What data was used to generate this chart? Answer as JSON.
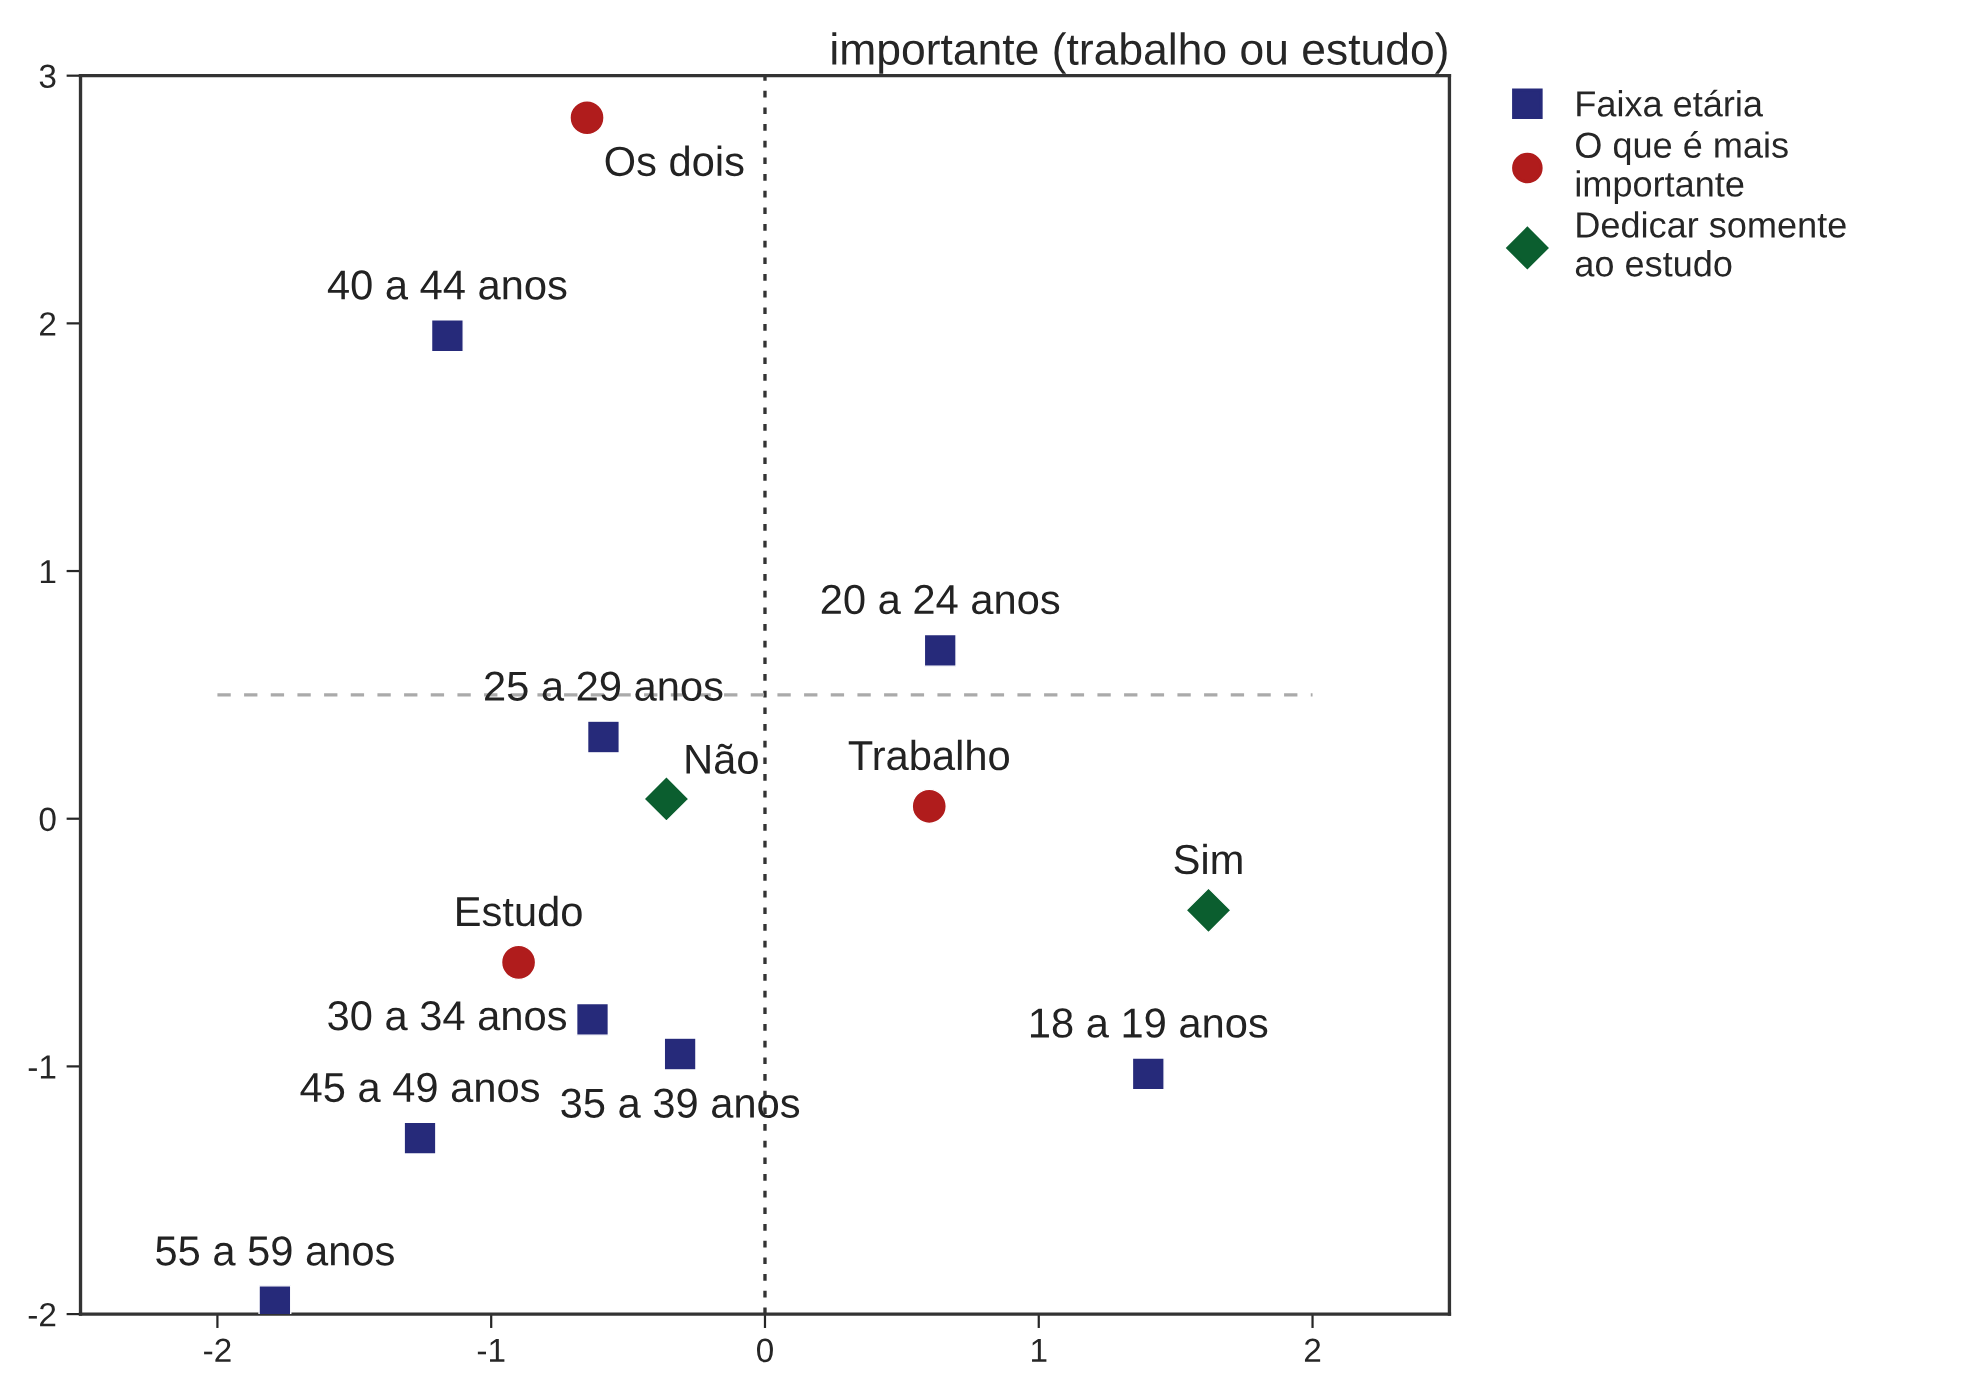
{
  "chart_data": {
    "type": "scatter",
    "title": "importante (trabalho ou estudo)",
    "xlim": [
      -2.5,
      2.5
    ],
    "ylim": [
      -2,
      3
    ],
    "xticks": [
      -2,
      -1,
      0,
      1,
      2
    ],
    "yticks": [
      -2,
      -1,
      0,
      1,
      2,
      3
    ],
    "grid": false,
    "legend": "top right",
    "series": [
      {
        "name": "Faixa etária",
        "color": "#262a7a",
        "marker": "square",
        "x": [
          -1.16,
          0.64,
          -0.59,
          -0.63,
          -0.31,
          1.4,
          -1.26,
          -1.79
        ],
        "values": [
          1.95,
          0.68,
          0.33,
          -0.81,
          -0.95,
          -1.03,
          -1.29,
          -1.95
        ]
      },
      {
        "name": "O que é mais importante",
        "color": "#b01c1c",
        "marker": "circle",
        "x": [
          -0.65,
          0.6,
          -0.9
        ],
        "values": [
          2.83,
          0.05,
          -0.58
        ]
      },
      {
        "name": "Dedicar somente ao estudo",
        "color": "#0b5e2f",
        "marker": "diamond",
        "x": [
          -0.36,
          1.62
        ],
        "values": [
          0.08,
          -0.37
        ]
      }
    ],
    "annotations": [
      {
        "text": "40 a 44 anos",
        "x": -1.16,
        "y": 1.95
      },
      {
        "text": "20 a 24 anos",
        "x": 0.64,
        "y": 0.68
      },
      {
        "text": "25 a 29 anos",
        "x": -0.59,
        "y": 0.33
      },
      {
        "text": "30 a 34 anos",
        "x": -0.63,
        "y": -0.81
      },
      {
        "text": "35 a 39 anos",
        "x": -0.31,
        "y": -0.95
      },
      {
        "text": "18 a 19 anos",
        "x": 1.4,
        "y": -1.03
      },
      {
        "text": "45 a 49 anos",
        "x": -1.26,
        "y": -1.29
      },
      {
        "text": "55 a 59 anos",
        "x": -1.79,
        "y": -1.95
      },
      {
        "text": "Os dois",
        "x": -0.65,
        "y": 2.83
      },
      {
        "text": "Trabalho",
        "x": 0.6,
        "y": 0.05
      },
      {
        "text": "Estudo",
        "x": -0.9,
        "y": -0.58
      },
      {
        "text": "Não",
        "x": -0.36,
        "y": 0.08
      },
      {
        "text": "Sim",
        "x": 1.62,
        "y": -0.37
      }
    ],
    "ref_lines": [
      {
        "axis": "x",
        "value": 0,
        "color": "#333333",
        "line_style": "dotted"
      },
      {
        "axis": "y",
        "value": 0.5,
        "color": "#aaaaaa",
        "line_style": "dashed"
      }
    ]
  }
}
